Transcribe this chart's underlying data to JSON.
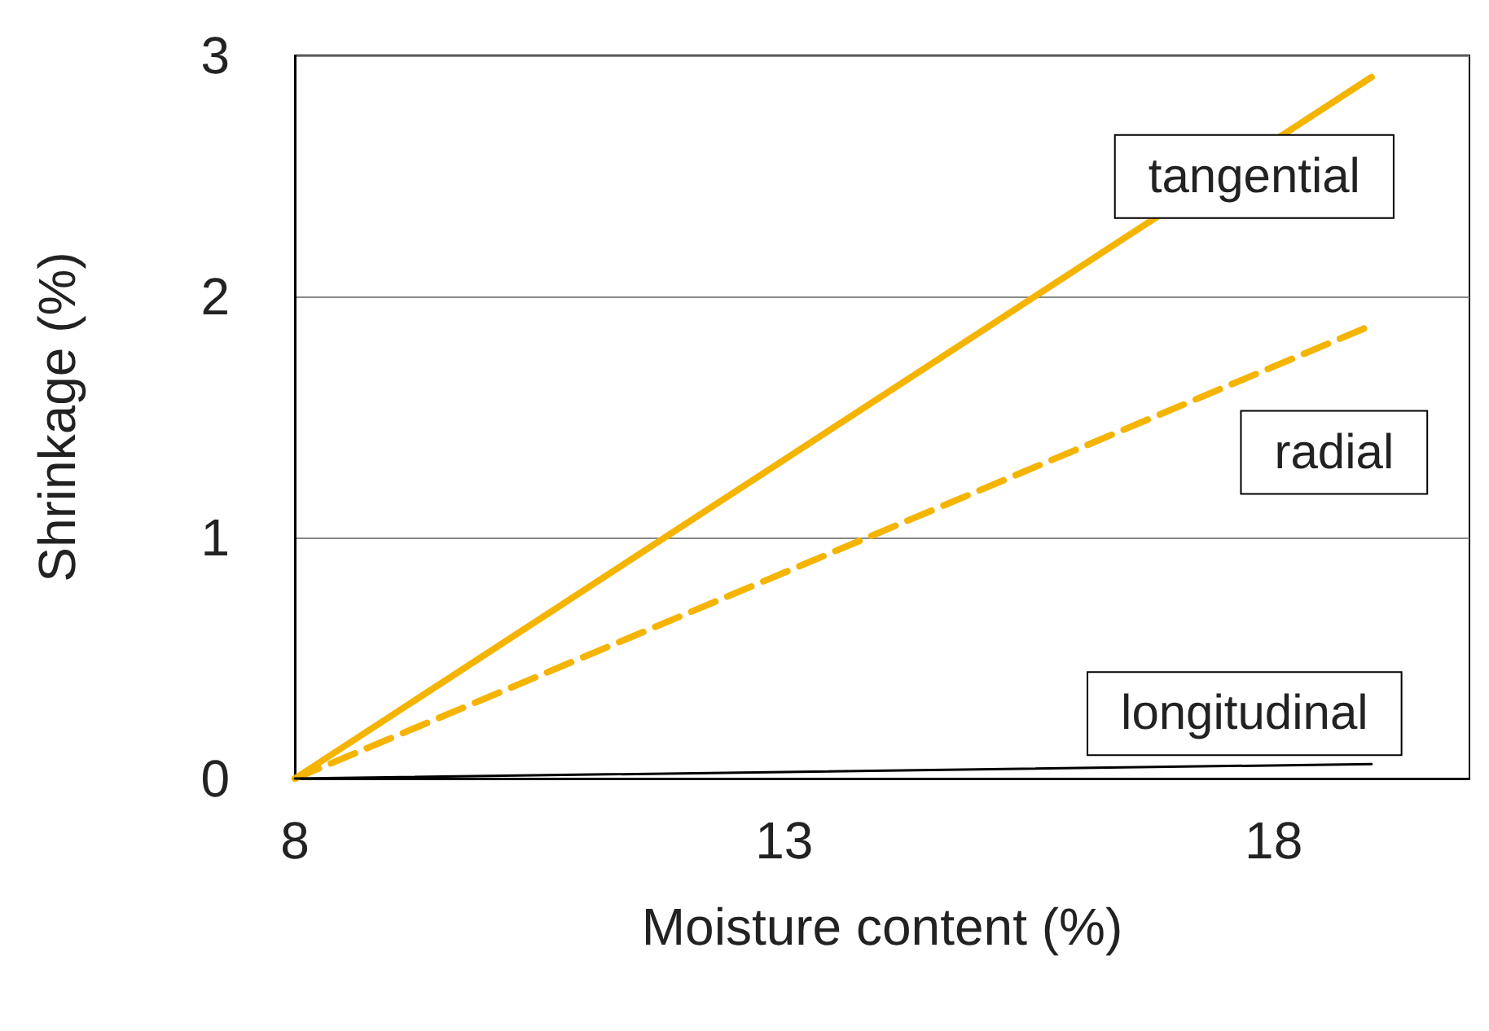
{
  "chart_data": {
    "type": "line",
    "xlabel": "Moisture content (%)",
    "ylabel": "Shrinkage (%)",
    "xlim": [
      8,
      20
    ],
    "xticks": [
      8,
      13,
      18
    ],
    "ylim": [
      0,
      3
    ],
    "yticks": [
      0,
      1,
      2,
      3
    ],
    "grid": "y",
    "marker": "none",
    "x": [
      8,
      19
    ],
    "series": [
      {
        "name": "tangential",
        "color": "#f5b400",
        "values": [
          0,
          2.91
        ],
        "line_style": "solid"
      },
      {
        "name": "radial",
        "color": "#f5b400",
        "values": [
          0,
          1.88
        ],
        "line_style": "dashed"
      },
      {
        "name": "longitudinal",
        "color": "#000000",
        "values": [
          0,
          0.06
        ],
        "line_style": "solid"
      }
    ]
  }
}
